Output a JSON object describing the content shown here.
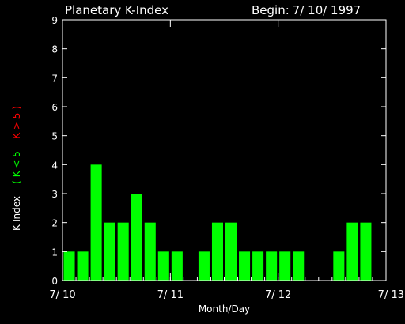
{
  "header": {
    "title": "Planetary K-Index",
    "begin_label": "Begin:",
    "begin_date": "7/ 10/ 1997"
  },
  "colors": {
    "low": "#00ff00",
    "high": "#ff0000",
    "axis": "#ffffff",
    "background": "#000000"
  },
  "chart_data": {
    "type": "bar",
    "title": "Planetary K-Index",
    "xlabel": "Month/Day",
    "ylabel": "K-Index",
    "legend": [
      {
        "label": "( K < 5",
        "color": "#00ff00"
      },
      {
        "label": "K > 5 )",
        "color": "#ff0000"
      }
    ],
    "ylim": [
      0,
      9
    ],
    "yticks": [
      "0",
      "1",
      "2",
      "3",
      "4",
      "5",
      "6",
      "7",
      "8",
      "9"
    ],
    "xticks": [
      "7/ 10",
      "7/ 11",
      "7/ 12",
      "7/ 13"
    ],
    "interval_hours": 3,
    "values": [
      1,
      1,
      4,
      2,
      2,
      3,
      2,
      1,
      1,
      0,
      1,
      2,
      2,
      1,
      1,
      1,
      1,
      1,
      0,
      0,
      1,
      2,
      2,
      0
    ]
  }
}
